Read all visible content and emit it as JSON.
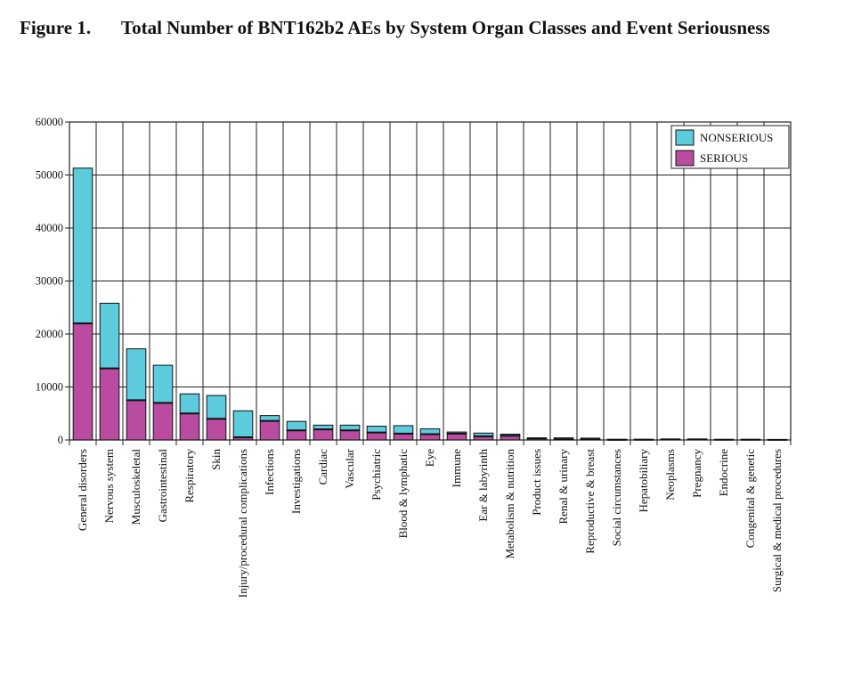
{
  "figure": {
    "label": "Figure 1.",
    "title": "Total Number of BNT162b2 AEs by System Organ Classes and Event Seriousness"
  },
  "colors": {
    "nonserious": "#5ccbdc",
    "serious": "#b94ca0",
    "axis": "#222222",
    "grid": "#222222"
  },
  "chart_data": {
    "type": "bar",
    "stacked": true,
    "grid": true,
    "legend_position": "top-right",
    "ylim": [
      0,
      60000
    ],
    "yticks": [
      0,
      10000,
      20000,
      30000,
      40000,
      50000,
      60000
    ],
    "categories": [
      "General disorders",
      "Nervous system",
      "Musculoskeletal",
      "Gastrointestinal",
      "Respiratory",
      "Skin",
      "Injury/procedural complications",
      "Infections",
      "Investigations",
      "Cardiac",
      "Vascular",
      "Psychiatric",
      "Blood & lymphatic",
      "Eye",
      "Immune",
      "Ear & labyrinth",
      "Metabolism & nutrition",
      "Product issues",
      "Renal & urinary",
      "Reproductive & breast",
      "Social circumstances",
      "Hepatobiliary",
      "Neoplasms",
      "Pregnancy",
      "Endocrine",
      "Congenital & genetic",
      "Surgical & medical procedures"
    ],
    "series": [
      {
        "name": "SERIOUS",
        "color": "#b94ca0",
        "values": [
          22000,
          13500,
          7500,
          7000,
          5000,
          4000,
          500,
          3600,
          1800,
          2000,
          1800,
          1400,
          1200,
          1100,
          1200,
          700,
          800,
          300,
          150,
          100,
          30,
          50,
          100,
          100,
          40,
          40,
          20
        ]
      },
      {
        "name": "NONSERIOUS",
        "color": "#5ccbdc",
        "values": [
          29300,
          12300,
          9700,
          7100,
          3700,
          4400,
          5000,
          1000,
          1700,
          800,
          1000,
          1200,
          1500,
          1000,
          300,
          600,
          300,
          100,
          250,
          250,
          100,
          80,
          80,
          80,
          60,
          80,
          30
        ]
      }
    ]
  }
}
